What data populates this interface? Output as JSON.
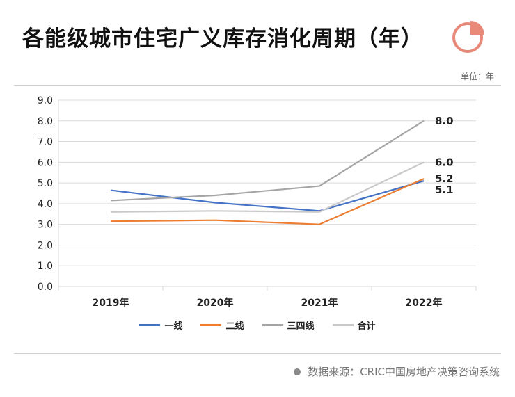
{
  "title": "各能级城市住宅广义库存消化周期（年）",
  "unit_label": "单位：年",
  "source": {
    "text": "数据来源：CRIC中国房地产决策咨询系统"
  },
  "icon": {
    "name": "pie-chart-icon",
    "color": "#e8897a"
  },
  "chart_data": {
    "type": "line",
    "title": "各能级城市住宅广义库存消化周期（年）",
    "xlabel": "",
    "ylabel": "",
    "categories": [
      "2019年",
      "2020年",
      "2021年",
      "2022年"
    ],
    "ylim": [
      0,
      9
    ],
    "yticks": [
      "0.0",
      "1.0",
      "2.0",
      "3.0",
      "4.0",
      "5.0",
      "6.0",
      "7.0",
      "8.0",
      "9.0"
    ],
    "grid": true,
    "legend_position": "bottom",
    "series": [
      {
        "name": "一线",
        "color": "#4472c4",
        "values": [
          4.65,
          4.05,
          3.65,
          5.1
        ],
        "end_label": "5.1"
      },
      {
        "name": "二线",
        "color": "#ed7d31",
        "values": [
          3.15,
          3.2,
          3.0,
          5.2
        ],
        "end_label": "5.2"
      },
      {
        "name": "三四线",
        "color": "#a5a5a5",
        "values": [
          4.15,
          4.4,
          4.85,
          8.0
        ],
        "end_label": "8.0"
      },
      {
        "name": "合计",
        "color": "#c9c9c9",
        "values": [
          3.6,
          3.65,
          3.6,
          6.0
        ],
        "end_label": "6.0"
      }
    ]
  }
}
